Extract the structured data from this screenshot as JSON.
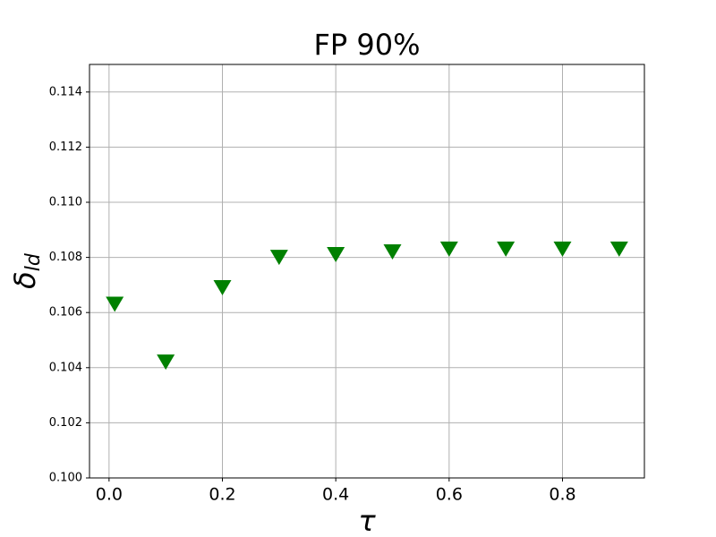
{
  "chart_data": {
    "type": "scatter",
    "title": "FP 90%",
    "xlabel": "τ",
    "ylabel": "δ",
    "ylabel_subscript": "ld",
    "marker": "triangle-down",
    "grid": true,
    "series": [
      {
        "color": "#008000",
        "x": [
          0.01,
          0.1,
          0.2,
          0.3,
          0.4,
          0.5,
          0.6,
          0.7,
          0.8,
          0.9
        ],
        "values": [
          0.1063,
          0.1042,
          0.1069,
          0.108,
          0.1081,
          0.1082,
          0.1083,
          0.1083,
          0.1083,
          0.1083
        ]
      }
    ],
    "xlim": [
      -0.0345,
      0.9445
    ],
    "xticks": [
      {
        "value": 0,
        "label": "0.0"
      },
      0.2,
      0.4,
      0.6,
      0.8
    ],
    "ylim": [
      0.1,
      0.115
    ],
    "yticks": [
      {
        "value": 0.1,
        "label": "0.100"
      },
      {
        "value": 0.102,
        "label": "0.102"
      },
      {
        "value": 0.104,
        "label": "0.104"
      },
      {
        "value": 0.106,
        "label": "0.106"
      },
      {
        "value": 0.108,
        "label": "0.108"
      },
      {
        "value": 0.11,
        "label": "0.110"
      },
      {
        "value": 0.112,
        "label": "0.112"
      },
      {
        "value": 0.114,
        "label": "0.114"
      }
    ]
  }
}
